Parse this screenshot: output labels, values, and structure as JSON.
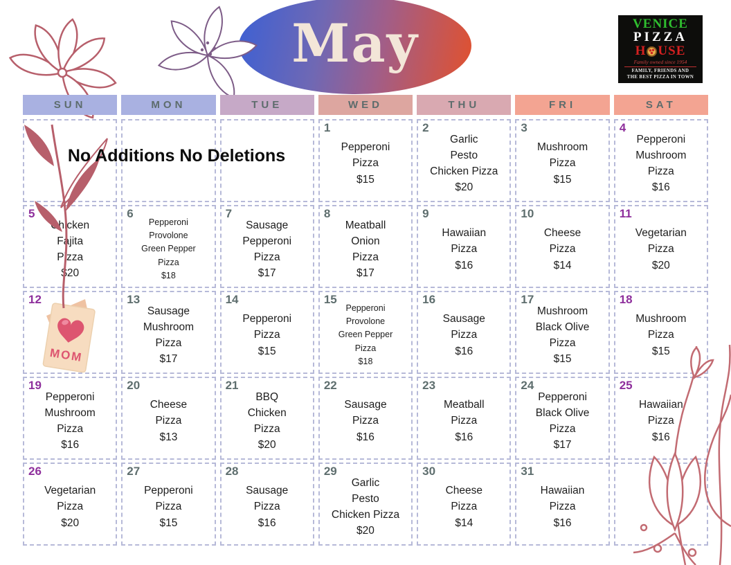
{
  "page": {
    "title_month": "May",
    "note": "No Additions No Deletions"
  },
  "logo": {
    "line1": "VENICE",
    "line2": "PIZZA",
    "house_pre": "H",
    "house_post": "USE",
    "script": "Family owned since 1954",
    "tagline1": "Family, Friends and",
    "tagline2": "The Best Pizza in Town"
  },
  "header": {
    "oval_gradient": [
      "#3c60d4",
      "#6f68b4",
      "#e2512c"
    ]
  },
  "calendar": {
    "weekdays": [
      {
        "label": "SUN",
        "bg": "#a9b1e1"
      },
      {
        "label": "MON",
        "bg": "#a9b1e1"
      },
      {
        "label": "TUE",
        "bg": "#c6a9c7"
      },
      {
        "label": "WED",
        "bg": "#dda6a0"
      },
      {
        "label": "THU",
        "bg": "#d9a9b1"
      },
      {
        "label": "FRI",
        "bg": "#f3a492"
      },
      {
        "label": "SAT",
        "bg": "#f3a492"
      }
    ],
    "colors": {
      "weekday_number": "#5e6e6e",
      "weekend_number": "#8e2f9c",
      "cell_border": "#b6b9d8",
      "menu_text": "#1d1d1d",
      "weekday_text": "#5d6c6c"
    },
    "mom_card_label": "MOM",
    "cells": [
      {
        "type": "empty"
      },
      {
        "type": "empty"
      },
      {
        "type": "empty"
      },
      {
        "date": "1",
        "lines": [
          "Pepperoni",
          "Pizza"
        ],
        "price": "$15"
      },
      {
        "date": "2",
        "lines": [
          "Garlic",
          "Pesto",
          "Chicken Pizza"
        ],
        "price": "$20"
      },
      {
        "date": "3",
        "lines": [
          "Mushroom",
          "Pizza"
        ],
        "price": "$15"
      },
      {
        "date": "4",
        "weekend": true,
        "lines": [
          "Pepperoni",
          "Mushroom",
          "Pizza"
        ],
        "price": "$16"
      },
      {
        "date": "5",
        "weekend": true,
        "lines": [
          "Chicken",
          "Fajita",
          "Pizza"
        ],
        "price": "$20"
      },
      {
        "date": "6",
        "small": true,
        "lines": [
          "Pepperoni",
          "Provolone",
          "Green Pepper",
          "Pizza"
        ],
        "price": "$18"
      },
      {
        "date": "7",
        "lines": [
          "Sausage",
          "Pepperoni",
          "Pizza"
        ],
        "price": "$17"
      },
      {
        "date": "8",
        "lines": [
          "Meatball",
          "Onion",
          "Pizza"
        ],
        "price": "$17"
      },
      {
        "date": "9",
        "lines": [
          "Hawaiian",
          "Pizza"
        ],
        "price": "$16"
      },
      {
        "date": "10",
        "lines": [
          "Cheese",
          "Pizza"
        ],
        "price": "$14"
      },
      {
        "date": "11",
        "weekend": true,
        "lines": [
          "Vegetarian",
          "Pizza"
        ],
        "price": "$20"
      },
      {
        "date": "12",
        "weekend": true,
        "card": true
      },
      {
        "date": "13",
        "lines": [
          "Sausage",
          "Mushroom",
          "Pizza"
        ],
        "price": "$17"
      },
      {
        "date": "14",
        "lines": [
          "Pepperoni",
          "Pizza"
        ],
        "price": "$15"
      },
      {
        "date": "15",
        "small": true,
        "lines": [
          "Pepperoni",
          "Provolone",
          "Green Pepper",
          "Pizza"
        ],
        "price": "$18"
      },
      {
        "date": "16",
        "lines": [
          "Sausage",
          "Pizza"
        ],
        "price": "$16"
      },
      {
        "date": "17",
        "lines": [
          "Mushroom",
          "Black Olive",
          "Pizza"
        ],
        "price": "$15"
      },
      {
        "date": "18",
        "weekend": true,
        "lines": [
          "Mushroom",
          "Pizza"
        ],
        "price": "$15"
      },
      {
        "date": "19",
        "weekend": true,
        "lines": [
          "Pepperoni",
          "Mushroom",
          "Pizza"
        ],
        "price": "$16"
      },
      {
        "date": "20",
        "lines": [
          "Cheese",
          "Pizza"
        ],
        "price": "$13"
      },
      {
        "date": "21",
        "lines": [
          "BBQ",
          "Chicken",
          "Pizza"
        ],
        "price": "$20"
      },
      {
        "date": "22",
        "lines": [
          "Sausage",
          "Pizza"
        ],
        "price": "$16"
      },
      {
        "date": "23",
        "lines": [
          "Meatball",
          "Pizza"
        ],
        "price": "$16"
      },
      {
        "date": "24",
        "lines": [
          "Pepperoni",
          "Black Olive",
          "Pizza"
        ],
        "price": "$17"
      },
      {
        "date": "25",
        "weekend": true,
        "lines": [
          "Hawaiian",
          "Pizza"
        ],
        "price": "$16"
      },
      {
        "date": "26",
        "weekend": true,
        "lines": [
          "Vegetarian",
          "Pizza"
        ],
        "price": "$20"
      },
      {
        "date": "27",
        "lines": [
          "Pepperoni",
          "Pizza"
        ],
        "price": "$15"
      },
      {
        "date": "28",
        "lines": [
          "Sausage",
          "Pizza"
        ],
        "price": "$16"
      },
      {
        "date": "29",
        "lines": [
          "Garlic",
          "Pesto",
          "Chicken Pizza"
        ],
        "price": "$20"
      },
      {
        "date": "30",
        "lines": [
          "Cheese",
          "Pizza"
        ],
        "price": "$14"
      },
      {
        "date": "31",
        "lines": [
          "Hawaiian",
          "Pizza"
        ],
        "price": "$16"
      },
      {
        "type": "empty"
      }
    ]
  }
}
